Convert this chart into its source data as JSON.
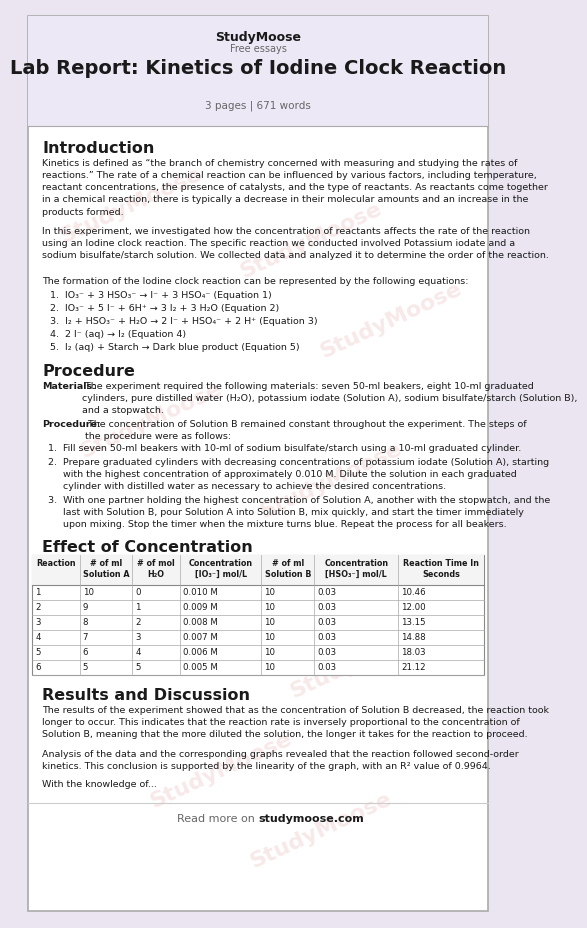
{
  "bg_color": "#eae5f0",
  "page_color": "#ffffff",
  "header_box_bg": "#ede8f5",
  "site_name": "StudyMoose",
  "site_tagline": "Free essays",
  "title": "Lab Report: Kinetics of Iodine Clock Reaction",
  "subtitle": "3 pages | 671 words",
  "section1_title": "Introduction",
  "section1_para1": "Kinetics is defined as “the branch of chemistry concerned with measuring and studying the rates of\nreactions.” The rate of a chemical reaction can be influenced by various factors, including temperature,\nreactant concentrations, the presence of catalysts, and the type of reactants. As reactants come together\nin a chemical reaction, there is typically a decrease in their molecular amounts and an increase in the\nproducts formed.",
  "section1_para2": "In this experiment, we investigated how the concentration of reactants affects the rate of the reaction\nusing an Iodine clock reaction. The specific reaction we conducted involved Potassium iodate and a\nsodium bisulfate/starch solution. We collected data and analyzed it to determine the order of the reaction.",
  "section1_para3": "The formation of the Iodine clock reaction can be represented by the following equations:",
  "equations": [
    "1.  IO₃⁻ + 3 HSO₃⁻ → I⁻ + 3 HSO₄⁻ (Equation 1)",
    "2.  IO₃⁻ + 5 I⁻ + 6H⁺ → 3 I₂ + 3 H₂O (Equation 2)",
    "3.  I₂ + HSO₃⁻ + H₂O → 2 I⁻ + HSO₄⁻ + 2 H⁺ (Equation 3)",
    "4.  2 I⁻ (aq) → I₂ (Equation 4)",
    "5.  I₂ (aq) + Starch → Dark blue product (Equation 5)"
  ],
  "section2_title": "Procedure",
  "section2_materials": "Materials: The experiment required the following materials: seven 50-ml beakers, eight 10-ml graduated\ncylinders, pure distilled water (H₂O), potassium iodate (Solution A), sodium bisulfate/starch (Solution B),\nand a stopwatch.",
  "section2_procedure_bold": "Procedure:",
  "section2_procedure_rest": " The concentration of Solution B remained constant throughout the experiment. The steps of\nthe procedure were as follows:",
  "proc_steps": [
    "1.  Fill seven 50-ml beakers with 10-ml of sodium bisulfate/starch using a 10-ml graduated cylinder.",
    "2.  Prepare graduated cylinders with decreasing concentrations of potassium iodate (Solution A), starting\n     with the highest concentration of approximately 0.010 M. Dilute the solution in each graduated\n     cylinder with distilled water as necessary to achieve the desired concentrations.",
    "3.  With one partner holding the highest concentration of Solution A, another with the stopwatch, and the\n     last with Solution B, pour Solution A into Solution B, mix quickly, and start the timer immediately\n     upon mixing. Stop the timer when the mixture turns blue. Repeat the process for all beakers."
  ],
  "section3_title": "Effect of Concentration",
  "table_headers": [
    "Reaction",
    "# of ml\nSolution A",
    "# of mol\nH₂O",
    "Concentration\n[IO₃⁻] mol/L",
    "# of ml\nSolution B",
    "Concentration\n[HSO₃⁻] mol/L",
    "Reaction Time In\nSeconds"
  ],
  "table_data": [
    [
      "1",
      "10",
      "0",
      "0.010 M",
      "10",
      "0.03",
      "10.46"
    ],
    [
      "2",
      "9",
      "1",
      "0.009 M",
      "10",
      "0.03",
      "12.00"
    ],
    [
      "3",
      "8",
      "2",
      "0.008 M",
      "10",
      "0.03",
      "13.15"
    ],
    [
      "4",
      "7",
      "3",
      "0.007 M",
      "10",
      "0.03",
      "14.88"
    ],
    [
      "5",
      "6",
      "4",
      "0.006 M",
      "10",
      "0.03",
      "18.03"
    ],
    [
      "6",
      "5",
      "5",
      "0.005 M",
      "10",
      "0.03",
      "21.12"
    ]
  ],
  "section4_title": "Results and Discussion",
  "section4_para1": "The results of the experiment showed that as the concentration of Solution B decreased, the reaction took\nlonger to occur. This indicates that the reaction rate is inversely proportional to the concentration of\nSolution B, meaning that the more diluted the solution, the longer it takes for the reaction to proceed.",
  "section4_para2": "Analysis of the data and the corresponding graphs revealed that the reaction followed second-order\nkinetics. This conclusion is supported by the linearity of the graph, with an R² value of 0.9964.",
  "section4_para3": "With the knowledge of...",
  "footer": "Read more on studymoose.com",
  "watermark_text": "StudyMoose",
  "border_color": "#aaaaaa",
  "line_color": "#cccccc",
  "text_color": "#1a1a1a",
  "muted_color": "#666666"
}
